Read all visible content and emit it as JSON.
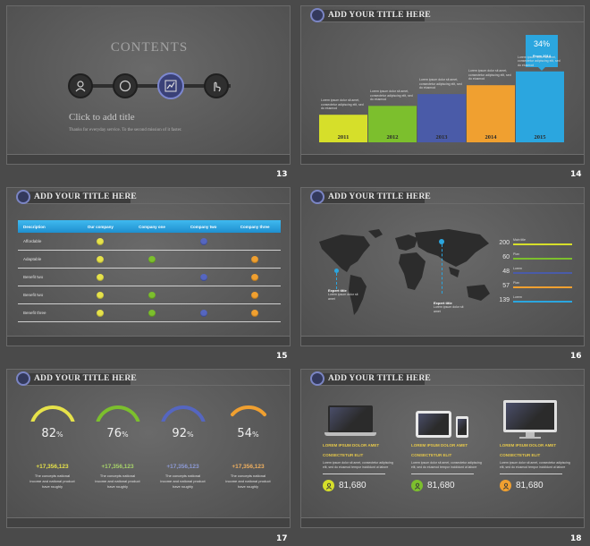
{
  "slides": [
    {
      "number": "13",
      "title": "CONTENTS",
      "subtitle": "Click to add title",
      "caption": "Thanks for everyday service. To the second mission of it faster.",
      "icons": [
        "user-icon",
        "compass-icon",
        "chart-icon",
        "touch-icon"
      ]
    },
    {
      "number": "14",
      "header": "ADD YOUR TITLE HERE",
      "callout_value": "34%",
      "callout_sub": "From 2014",
      "bar_caption": "Lorem ipsum dolor sit amet, consectetur adipiscing elit, sed do eiusmod",
      "chart_data": {
        "type": "bar",
        "categories": [
          "2011",
          "2012",
          "2013",
          "2014",
          "2015"
        ],
        "values": [
          28,
          37,
          49,
          58,
          72
        ],
        "ylim": [
          0,
          100
        ],
        "colors": [
          "#d6df2a",
          "#7cbf2d",
          "#4a5ba8",
          "#f0a030",
          "#2ba6df"
        ]
      }
    },
    {
      "number": "15",
      "header": "ADD YOUR TITLE HERE",
      "table": {
        "headers": [
          "Description",
          "Our company",
          "Company one",
          "Company two",
          "Company three"
        ],
        "rows": [
          {
            "label": "Affordable",
            "marks": [
              "yellow",
              "",
              "blue",
              ""
            ]
          },
          {
            "label": "Adaptable",
            "marks": [
              "yellow",
              "green",
              "",
              "orange"
            ]
          },
          {
            "label": "Benefit two",
            "marks": [
              "yellow",
              "",
              "blue",
              "orange"
            ]
          },
          {
            "label": "Benefit two",
            "marks": [
              "yellow",
              "green",
              "",
              "orange"
            ]
          },
          {
            "label": "Benefit three",
            "marks": [
              "yellow",
              "green",
              "blue",
              "orange"
            ]
          }
        ]
      }
    },
    {
      "number": "16",
      "header": "ADD YOUR TITLE HERE",
      "pins": [
        {
          "label": "Expert title",
          "text": "Lorem ipsum dolor sit amet"
        },
        {
          "label": "Expert title",
          "text": "Lorem ipsum dolor sit amet"
        }
      ],
      "stats": [
        {
          "value": "200",
          "label": "Main title",
          "color": "#d6df2a"
        },
        {
          "value": "60",
          "label": "Plan",
          "color": "#7cbf2d"
        },
        {
          "value": "48",
          "label": "Lorem",
          "color": "#4a5ba8"
        },
        {
          "value": "57",
          "label": "Plan",
          "color": "#f0a030"
        },
        {
          "value": "139",
          "label": "Lorem",
          "color": "#2ba6df"
        }
      ]
    },
    {
      "number": "17",
      "header": "ADD YOUR TITLE HERE",
      "gauges": [
        {
          "percent": "82",
          "unit": "%",
          "amount": "+17,356,123",
          "color": "#e6e24a",
          "amountColor": "#e6e24a",
          "text": "The concepts national income and national product have roughly"
        },
        {
          "percent": "76",
          "unit": "%",
          "amount": "+17,356,123",
          "color": "#7cbf2d",
          "amountColor": "#a8d46a",
          "text": "The concepts national income and national product have roughly"
        },
        {
          "percent": "92",
          "unit": "%",
          "amount": "+17,356,123",
          "color": "#5566c0",
          "amountColor": "#8d9ad6",
          "text": "The concepts national income and national product have roughly"
        },
        {
          "percent": "54",
          "unit": "%",
          "amount": "+17,356,123",
          "color": "#f0a030",
          "amountColor": "#f0b060",
          "text": "The concepts national income and national product have roughly"
        }
      ]
    },
    {
      "number": "18",
      "header": "ADD YOUR TITLE HERE",
      "devices": [
        {
          "title": "LOREM IPSUM DOLOR AMET",
          "sub": "CONSECTETUR ELIT",
          "text": "Lorem ipsum dolor sit amet, consectetur adipiscing elit, sed do eiusmod tempor incididunt ut labore",
          "count": "81,680",
          "color": "#d6df2a",
          "icon": "laptop-icon"
        },
        {
          "title": "LOREM IPSUM DOLOR AMET",
          "sub": "CONSECTETUR ELIT",
          "text": "Lorem ipsum dolor sit amet, consectetur adipiscing elit, sed do eiusmod tempor incididunt ut labore",
          "count": "81,680",
          "color": "#7cbf2d",
          "icon": "tablet-phone-icon"
        },
        {
          "title": "LOREM IPSUM DOLOR AMET",
          "sub": "CONSECTETUR ELIT",
          "text": "Lorem ipsum dolor sit amet, consectetur adipiscing elit, sed do eiusmod tempor incididunt ut labore",
          "count": "81,680",
          "color": "#f0a030",
          "icon": "monitor-icon"
        }
      ]
    }
  ]
}
